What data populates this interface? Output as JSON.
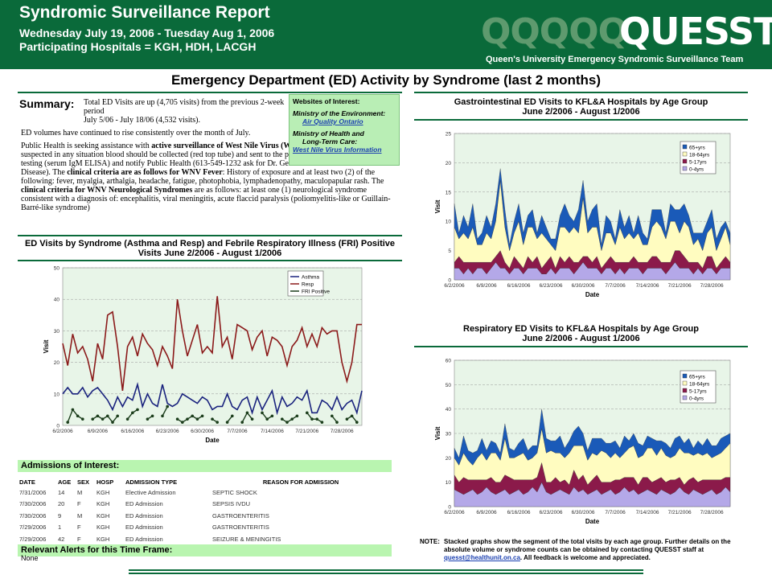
{
  "header": {
    "title": "Syndromic Surveillance Report",
    "date_range": "Wednesday July 19, 2006 - Tuesday Aug 1, 2006",
    "hospitals": "Participating Hospitals = KGH, HDH, LACGH",
    "logo_ghost": "QQQQQ",
    "logo": "QUESST",
    "logo_subtitle": "Queen's University Emergency Syndromic Surveillance Team",
    "brand_color": "#0a6a3a"
  },
  "main_title": "Emergency Department (ED) Activity by Syndrome (last 2 months)",
  "summary": {
    "label": "Summary:",
    "p1": "Total ED Visits are up (4,705 visits) from the previous 2-week period",
    "p1b": "July 5/06 - July 18/06 (4,532 visits).",
    "p2": "ED volumes have continued to rise consistently over the month of July.",
    "p3a": "Public Health is seeking assistance with ",
    "p3b": "active surveillance of West Nile Virus (WNV)",
    "p3c": " this season.  If WNV is suspected in any situation blood should be collected (red top tube) and sent to the provincial Public Health Lab for testing (serum IgM ELISA) and notify Public Health (613-549-1232 ask for Dr. Gemmill or Communicable Disease). The ",
    "p3d": "clinical criteria are as follows for WNV Fever",
    "p3e": ":  History of exposure and at least two (2) of the following: fever, myalgia, arthalgia, headache, fatigue, photophobia, lymphadenopathy, maculopapular rash.  The ",
    "p3f": "clinical criteria for WNV Neurological Syndromes",
    "p3g": " are as follows:  at least one (1) neurological syndrome consistent with a diagnosis of: encephalitis, viral meningitis, acute flaccid paralysis (poliomyelitis-like or Guillain-Barré-like syndrome)"
  },
  "websites": {
    "title": "Websites of Interest:",
    "org1": "Ministry of the Environment:",
    "link1": "Air Quality Ontario",
    "org2a": "Ministry of Health and",
    "org2b": "Long-Term Care:",
    "link2": "West Nile Virus Information"
  },
  "admissions": {
    "title": "Admissions of Interest:",
    "columns": [
      "DATE",
      "AGE",
      "SEX",
      "HOSP",
      "ADMISSION TYPE",
      "REASON FOR ADMISSION"
    ],
    "rows": [
      [
        "7/31/2006",
        "14",
        "M",
        "KGH",
        "Elective Admission",
        "SEPTIC SHOCK"
      ],
      [
        "7/30/2006",
        "20",
        "F",
        "KGH",
        "ED Admission",
        "SEPSIS IVDU"
      ],
      [
        "7/30/2006",
        "9",
        "M",
        "KGH",
        "ED Admission",
        "GASTROENTERITIS"
      ],
      [
        "7/29/2006",
        "1",
        "F",
        "KGH",
        "ED Admission",
        "GASTROENTERITIS"
      ],
      [
        "7/29/2006",
        "42",
        "F",
        "KGH",
        "ED Admission",
        "SEIZURE & MENINGITIS"
      ]
    ]
  },
  "alerts": {
    "title": "Relevant Alerts for this Time Frame:",
    "value": "None"
  },
  "note": {
    "label": "NOTE:",
    "text": "Stacked graphs show the segment of the total visits by each age group. Further details on the absolute volume or syndrome counts can be obtained by contacting QUESST staff at",
    "email": "quesst@healthunit.on.ca",
    "text2": ". All feedback is welcome and appreciated."
  },
  "chart_data": [
    {
      "id": "resp_asthma",
      "type": "line",
      "title": "ED Visits by Syndrome (Asthma and Resp) and Febrile Respiratory Illness (FRI) Positive Visits June 2/2006 - August 1/2006",
      "xlabel": "Date",
      "ylabel": "Visit",
      "ylim": [
        0,
        50
      ],
      "yticks": [
        0,
        10,
        20,
        30,
        40,
        50
      ],
      "xtick_labels": [
        "6/2/2006",
        "6/9/2006",
        "6/16/2006",
        "6/23/2006",
        "6/30/2006",
        "7/7/2006",
        "7/14/2006",
        "7/21/2006",
        "7/28/2006"
      ],
      "grid": true,
      "legend_position": "top-right",
      "plot_bg": "#e8f5e8",
      "series": [
        {
          "name": "Asthma",
          "color": "#1a237e",
          "values": [
            10,
            12,
            10,
            10,
            12,
            9,
            11,
            12,
            10,
            8,
            5,
            9,
            6,
            9,
            8,
            13,
            6,
            10,
            7,
            6,
            13,
            7,
            6,
            7,
            10,
            9,
            8,
            7,
            9,
            8,
            5,
            6,
            6,
            10,
            6,
            5,
            8,
            9,
            4,
            9,
            5,
            8,
            11,
            4,
            9,
            6,
            7,
            9,
            8,
            11,
            4,
            4,
            8,
            7,
            5,
            9,
            5,
            7,
            8,
            4,
            11
          ]
        },
        {
          "name": "Resp",
          "color": "#8b1a1a",
          "values": [
            26,
            19,
            29,
            23,
            25,
            21,
            14,
            26,
            21,
            35,
            36,
            25,
            11,
            25,
            28,
            22,
            29,
            26,
            24,
            19,
            25,
            22,
            18,
            40,
            30,
            22,
            27,
            32,
            23,
            25,
            23,
            41,
            25,
            28,
            21,
            32,
            31,
            30,
            24,
            28,
            30,
            22,
            28,
            27,
            25,
            19,
            25,
            27,
            31,
            25,
            29,
            25,
            31,
            29,
            30,
            30,
            20,
            14,
            20,
            32,
            32
          ]
        },
        {
          "name": "FRI Positive",
          "color": "#1b3d1b",
          "values": [
            null,
            1,
            5,
            3,
            2,
            null,
            2,
            3,
            2,
            3,
            1,
            3,
            null,
            2,
            4,
            5,
            null,
            2,
            3,
            null,
            3,
            6,
            null,
            2,
            1,
            2,
            3,
            2,
            3,
            null,
            2,
            1,
            null,
            1,
            3,
            null,
            1,
            4,
            2,
            null,
            4,
            2,
            3,
            null,
            2,
            1,
            2,
            3,
            null,
            4,
            2,
            2,
            1,
            null,
            3,
            1,
            null,
            2,
            3,
            1,
            null
          ]
        }
      ]
    },
    {
      "id": "gi_age",
      "type": "area",
      "stacked": true,
      "title": "Gastrointestinal ED Visits to KFL&A Hospitals by Age Group",
      "subtitle": "June 2/2006 - August 1/2006",
      "xlabel": "Date",
      "ylabel": "Visit",
      "ylim": [
        0,
        25
      ],
      "yticks": [
        0,
        5,
        10,
        15,
        20,
        25
      ],
      "xtick_labels": [
        "6/2/2006",
        "6/9/2006",
        "6/16/2006",
        "6/23/2006",
        "6/30/2006",
        "7/7/2006",
        "7/14/2006",
        "7/21/2006",
        "7/28/2006"
      ],
      "grid": true,
      "legend_position": "top-right",
      "plot_bg": "#e8f5e8",
      "series": [
        {
          "name": "0-4yrs",
          "color": "#b4a8e8",
          "values": [
            2,
            2,
            1,
            2,
            1,
            2,
            2,
            1,
            2,
            3,
            2,
            2,
            1,
            2,
            2,
            1,
            2,
            2,
            2,
            1,
            1,
            2,
            1,
            2,
            2,
            2,
            1,
            2,
            3,
            2,
            2,
            2,
            1,
            2,
            2,
            1,
            2,
            1,
            2,
            2,
            2,
            1,
            2,
            2,
            2,
            2,
            1,
            2,
            3,
            2,
            2,
            2,
            1,
            2,
            1,
            2,
            2,
            1,
            2,
            2,
            2
          ]
        },
        {
          "name": "5-17yrs",
          "color": "#8b1a4a",
          "values": [
            1,
            2,
            2,
            1,
            2,
            1,
            1,
            2,
            1,
            1,
            3,
            1,
            1,
            2,
            1,
            1,
            2,
            1,
            2,
            1,
            2,
            2,
            1,
            2,
            1,
            2,
            2,
            1,
            1,
            2,
            1,
            2,
            1,
            1,
            2,
            2,
            1,
            2,
            1,
            2,
            1,
            2,
            1,
            2,
            2,
            1,
            2,
            1,
            2,
            3,
            2,
            1,
            2,
            1,
            1,
            2,
            2,
            1,
            1,
            2,
            1
          ]
        },
        {
          "name": "18-64yrs",
          "color": "#fffcc0",
          "values": [
            6,
            3,
            5,
            4,
            6,
            3,
            3,
            5,
            4,
            6,
            12,
            6,
            3,
            4,
            7,
            4,
            5,
            6,
            3,
            6,
            4,
            2,
            3,
            5,
            6,
            4,
            6,
            5,
            10,
            4,
            6,
            5,
            3,
            5,
            4,
            3,
            6,
            4,
            5,
            3,
            5,
            3,
            3,
            5,
            6,
            6,
            4,
            7,
            5,
            3,
            6,
            6,
            3,
            4,
            3,
            4,
            5,
            3,
            4,
            5,
            3
          ]
        },
        {
          "name": "65+yrs",
          "color": "#1a5ab8",
          "values": [
            4,
            1,
            3,
            2,
            4,
            1,
            2,
            3,
            2,
            3,
            2,
            3,
            1,
            2,
            3,
            2,
            2,
            3,
            1,
            3,
            2,
            1,
            2,
            2,
            4,
            3,
            1,
            4,
            3,
            2,
            3,
            4,
            1,
            3,
            2,
            1,
            3,
            2,
            3,
            1,
            3,
            2,
            1,
            3,
            2,
            3,
            1,
            3,
            2,
            4,
            3,
            2,
            2,
            1,
            3,
            2,
            3,
            2,
            2,
            1,
            2
          ]
        }
      ]
    },
    {
      "id": "resp_age",
      "type": "area",
      "stacked": true,
      "title": "Respiratory ED Visits to KFL&A Hospitals by Age Group",
      "subtitle": "June 2/2006 - August 1/2006",
      "xlabel": "Date",
      "ylabel": "Visit",
      "ylim": [
        0,
        60
      ],
      "yticks": [
        0,
        10,
        20,
        30,
        40,
        50,
        60
      ],
      "xtick_labels": [
        "6/2/2006",
        "6/9/2006",
        "6/16/2006",
        "6/23/2006",
        "6/30/2006",
        "7/7/2006",
        "7/14/2006",
        "7/21/2006",
        "7/28/2006"
      ],
      "grid": true,
      "legend_position": "top-right",
      "plot_bg": "#e8f5e8",
      "series": [
        {
          "name": "0-4yrs",
          "color": "#b4a8e8",
          "values": [
            7,
            6,
            5,
            6,
            7,
            5,
            6,
            8,
            6,
            5,
            6,
            7,
            5,
            6,
            7,
            5,
            6,
            8,
            6,
            10,
            6,
            5,
            6,
            7,
            6,
            5,
            8,
            6,
            7,
            5,
            6,
            7,
            5,
            6,
            7,
            5,
            6,
            8,
            6,
            7,
            5,
            6,
            7,
            6,
            5,
            7,
            6,
            5,
            6,
            8,
            6,
            5,
            7,
            6,
            5,
            6,
            7,
            5,
            6,
            8,
            6
          ]
        },
        {
          "name": "5-17yrs",
          "color": "#8b1a4a",
          "values": [
            6,
            4,
            7,
            5,
            4,
            6,
            5,
            3,
            6,
            5,
            4,
            6,
            7,
            5,
            4,
            6,
            5,
            3,
            6,
            8,
            4,
            5,
            6,
            3,
            5,
            4,
            7,
            5,
            6,
            4,
            5,
            6,
            5,
            4,
            3,
            6,
            5,
            4,
            6,
            5,
            4,
            6,
            5,
            4,
            6,
            5,
            4,
            6,
            5,
            4,
            3,
            6,
            5,
            4,
            6,
            5,
            4,
            6,
            5,
            4,
            6
          ]
        },
        {
          "name": "18-64yrs",
          "color": "#fffcc0",
          "values": [
            7,
            7,
            10,
            8,
            6,
            9,
            11,
            8,
            10,
            12,
            9,
            15,
            8,
            9,
            10,
            11,
            8,
            9,
            10,
            14,
            12,
            13,
            10,
            12,
            9,
            13,
            10,
            14,
            12,
            10,
            11,
            8,
            13,
            12,
            10,
            11,
            9,
            10,
            12,
            13,
            11,
            9,
            12,
            14,
            10,
            12,
            11,
            9,
            10,
            12,
            13,
            11,
            9,
            12,
            10,
            11,
            9,
            10,
            11,
            12,
            14
          ]
        },
        {
          "name": "65+yrs",
          "color": "#1a5ab8",
          "values": [
            4,
            3,
            7,
            4,
            5,
            3,
            6,
            4,
            5,
            4,
            3,
            6,
            4,
            3,
            5,
            6,
            4,
            5,
            3,
            8,
            6,
            4,
            5,
            7,
            4,
            5,
            6,
            8,
            5,
            4,
            6,
            7,
            5,
            4,
            6,
            5,
            4,
            7,
            3,
            5,
            6,
            4,
            5,
            4,
            6,
            3,
            5,
            4,
            7,
            5,
            4,
            6,
            3,
            5,
            4,
            6,
            5,
            4,
            6,
            5,
            4
          ]
        }
      ]
    }
  ]
}
